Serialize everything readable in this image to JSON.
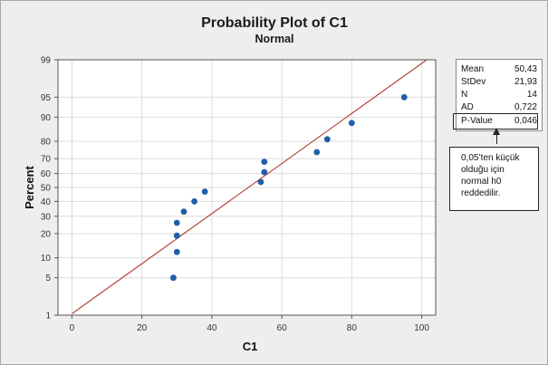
{
  "chart_data": {
    "type": "scatter",
    "title": "Probability Plot of C1",
    "subtitle": "Normal",
    "xlabel": "C1",
    "ylabel": "Percent",
    "xlim": [
      -4,
      104
    ],
    "x_ticks": [
      0,
      20,
      40,
      60,
      80,
      100
    ],
    "y_scale": "normal-probability",
    "y_ticks": [
      1,
      5,
      10,
      20,
      30,
      40,
      50,
      60,
      70,
      80,
      90,
      95,
      99
    ],
    "points": [
      {
        "x": 29,
        "y": 5
      },
      {
        "x": 30,
        "y": 12
      },
      {
        "x": 30,
        "y": 19
      },
      {
        "x": 30,
        "y": 26
      },
      {
        "x": 32,
        "y": 33
      },
      {
        "x": 35,
        "y": 40
      },
      {
        "x": 38,
        "y": 47
      },
      {
        "x": 54,
        "y": 54
      },
      {
        "x": 55,
        "y": 61
      },
      {
        "x": 55,
        "y": 68
      },
      {
        "x": 70,
        "y": 74
      },
      {
        "x": 73,
        "y": 81
      },
      {
        "x": 80,
        "y": 88
      },
      {
        "x": 95,
        "y": 95
      }
    ],
    "fit_line": {
      "mean": 50.43,
      "stdev": 21.93
    },
    "grid": true,
    "colors": {
      "points": "#1f5fa8",
      "fit_line": "#b5443b",
      "grid": "#dcdcdc",
      "background": "#eeeeee"
    }
  },
  "stats": [
    {
      "key": "Mean",
      "value": "50,43"
    },
    {
      "key": "StDev",
      "value": "21,93"
    },
    {
      "key": "N",
      "value": "14"
    },
    {
      "key": "AD",
      "value": "0,722"
    },
    {
      "key": "P-Value",
      "value": "0,046"
    }
  ],
  "note": {
    "lines": [
      "0,05’ten küçük",
      "olduğu için",
      "normal h0",
      "reddedilir."
    ]
  }
}
